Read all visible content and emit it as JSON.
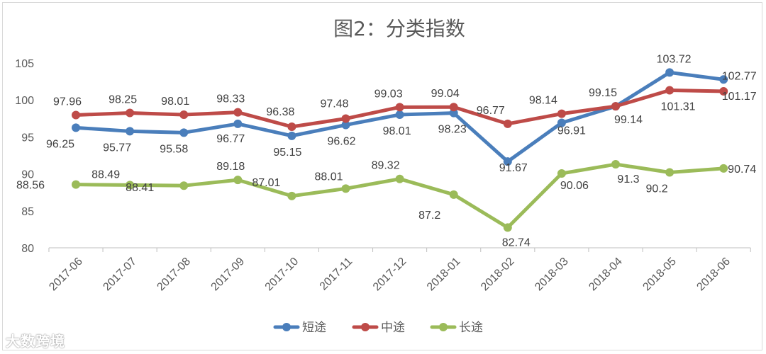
{
  "chart_data": {
    "type": "line",
    "title": "图2：分类指数",
    "categories": [
      "2017-06",
      "2017-07",
      "2017-08",
      "2017-09",
      "2017-10",
      "2017-11",
      "2017-12",
      "2018-01",
      "2018-02",
      "2018-03",
      "2018-04",
      "2018-05",
      "2018-06"
    ],
    "ylim": [
      80,
      105
    ],
    "yticks": [
      80,
      85,
      90,
      95,
      100,
      105
    ],
    "grid": false,
    "legend_position": "bottom",
    "series": [
      {
        "name": "短途",
        "color": "#4a7ebb",
        "values": [
          96.25,
          95.77,
          95.58,
          96.77,
          95.15,
          96.62,
          98.01,
          98.23,
          91.67,
          96.91,
          99.14,
          103.72,
          102.77
        ],
        "labels": [
          "96.25",
          "95.77",
          "95.58",
          "96.77",
          "95.15",
          "96.62",
          "98.01",
          "98.23",
          "91.67",
          "96.91",
          "99.14",
          "103.72",
          "102.77"
        ]
      },
      {
        "name": "中途",
        "color": "#be4b48",
        "values": [
          97.96,
          98.25,
          98.01,
          98.33,
          96.38,
          97.48,
          99.03,
          99.04,
          96.77,
          98.14,
          99.15,
          101.31,
          101.17
        ],
        "labels": [
          "97.96",
          "98.25",
          "98.01",
          "98.33",
          "96.38",
          "97.48",
          "99.03",
          "99.04",
          "96.77",
          "98.14",
          "99.15",
          "101.31",
          "101.17"
        ]
      },
      {
        "name": "长途",
        "color": "#9bbb59",
        "values": [
          88.56,
          88.49,
          88.41,
          89.18,
          87.01,
          88.01,
          89.32,
          87.2,
          82.74,
          90.06,
          91.3,
          90.2,
          90.74
        ],
        "labels": [
          "88.56",
          "88.49",
          "88.41",
          "89.18",
          "87.01",
          "88.01",
          "89.32",
          "87.2",
          "82.74",
          "90.06",
          "91.3",
          "90.2",
          "90.74"
        ]
      }
    ]
  },
  "watermark": "大数跨境"
}
